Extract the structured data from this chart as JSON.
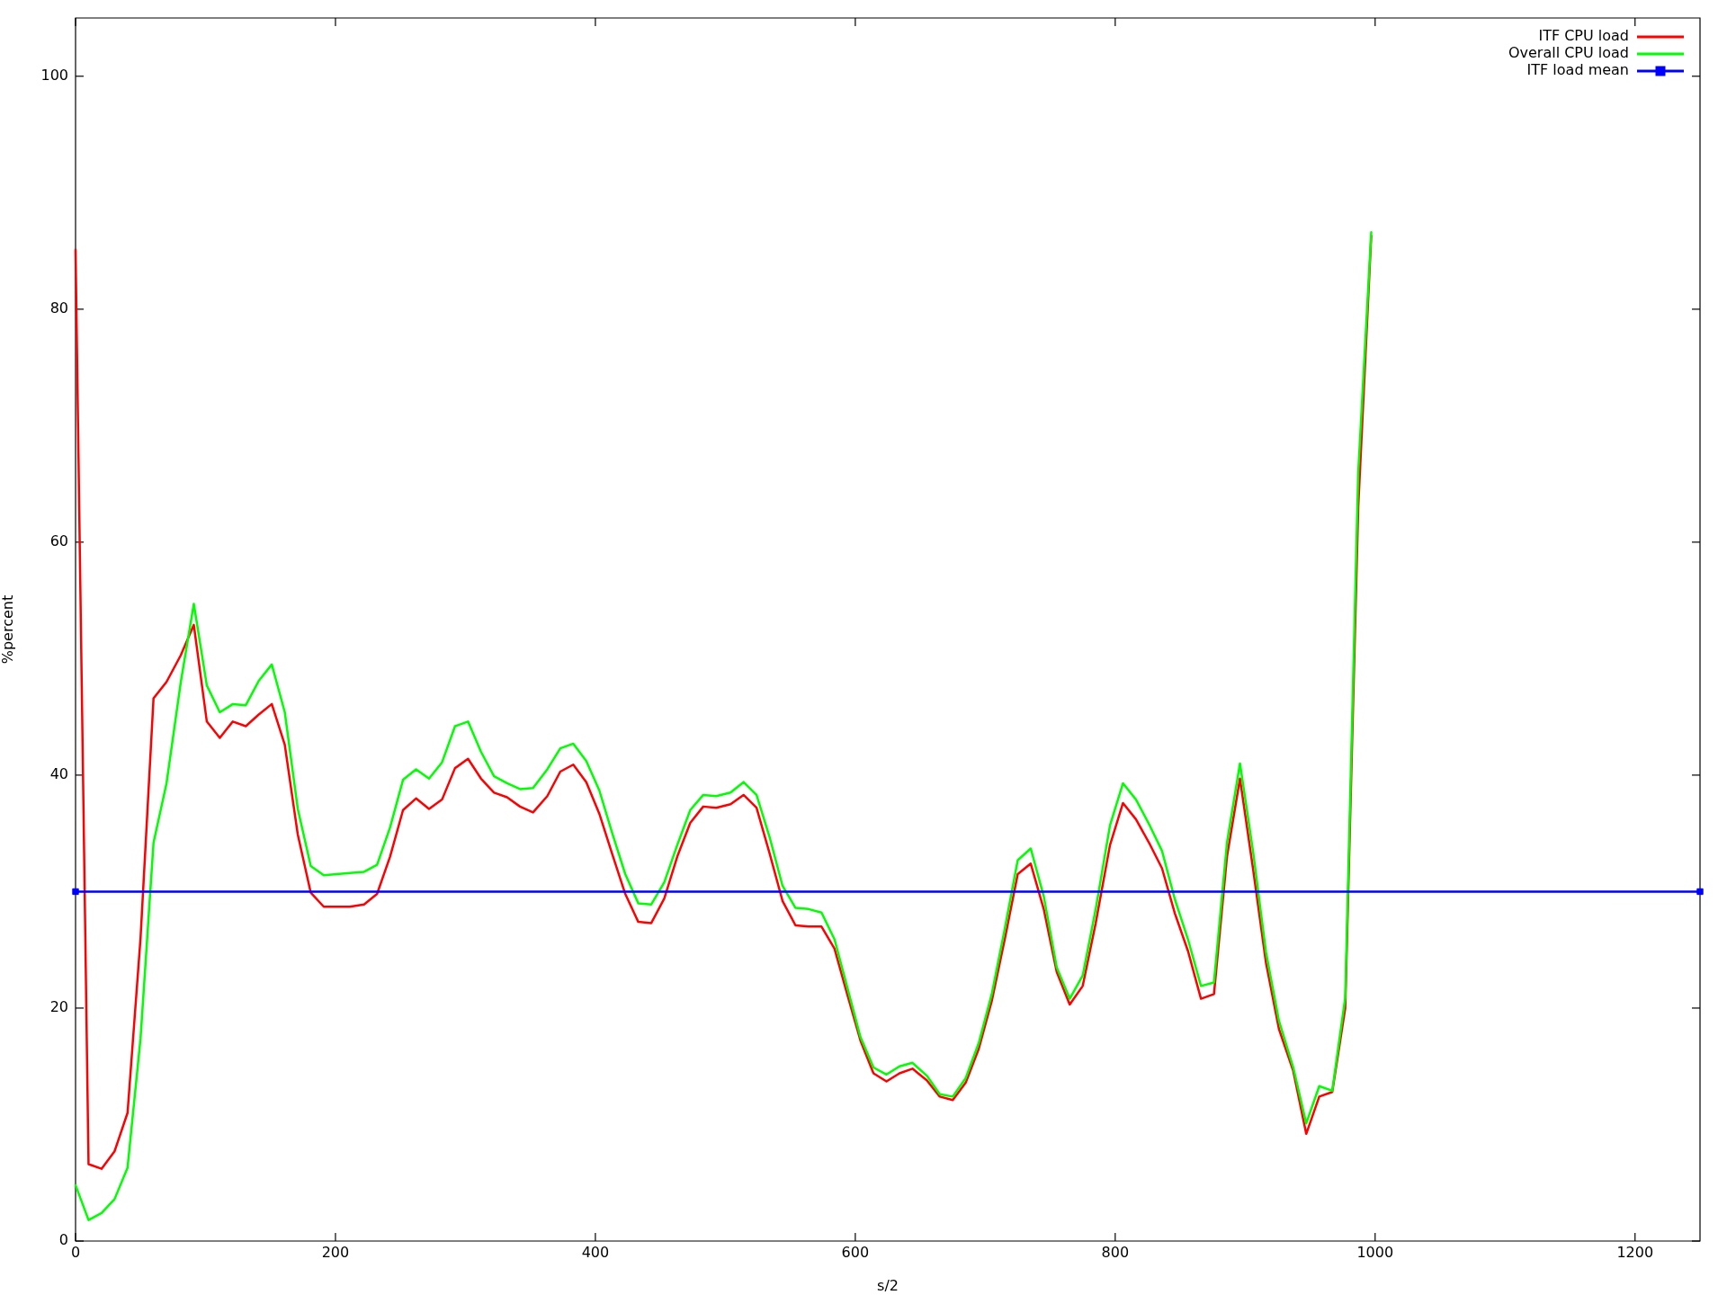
{
  "chart_data": {
    "type": "line",
    "xlabel": "s/2",
    "ylabel": "%percent",
    "legend": "top right",
    "xlim": [
      0,
      1250
    ],
    "xticks": [
      0,
      200,
      400,
      600,
      800,
      1000,
      1200
    ],
    "ylim": [
      0,
      105
    ],
    "yticks": [
      0,
      20,
      40,
      60,
      80,
      100
    ],
    "x": [
      0,
      10,
      20,
      30,
      40,
      50,
      60,
      70,
      81,
      91,
      101,
      111,
      121,
      131,
      141,
      151,
      161,
      171,
      181,
      191,
      201,
      211,
      222,
      232,
      242,
      252,
      262,
      272,
      282,
      292,
      302,
      312,
      322,
      332,
      342,
      352,
      363,
      373,
      383,
      393,
      403,
      413,
      423,
      433,
      443,
      453,
      463,
      473,
      483,
      493,
      504,
      514,
      524,
      534,
      544,
      554,
      564,
      574,
      584,
      594,
      604,
      614,
      624,
      634,
      644,
      655,
      665,
      675,
      685,
      695,
      705,
      715,
      725,
      735,
      745,
      755,
      765,
      775,
      785,
      796,
      806,
      816,
      826,
      836,
      846,
      856,
      866,
      876,
      886,
      896,
      906,
      916,
      926,
      937,
      947,
      957,
      967,
      977,
      987,
      997
    ],
    "series": [
      {
        "name": "ITF CPU load",
        "color": "#ff0000",
        "values": [
          85.1,
          6.6,
          6.2,
          7.7,
          11.0,
          26.0,
          46.6,
          48.0,
          50.3,
          52.9,
          44.6,
          43.2,
          44.6,
          44.2,
          45.2,
          46.1,
          42.6,
          34.9,
          29.9,
          28.7,
          28.7,
          28.7,
          28.9,
          29.8,
          33.0,
          37.0,
          38.0,
          37.1,
          37.9,
          40.6,
          41.4,
          39.7,
          38.5,
          38.1,
          37.3,
          36.8,
          38.2,
          40.3,
          40.9,
          39.4,
          36.7,
          33.2,
          29.8,
          27.4,
          27.3,
          29.4,
          33.0,
          35.9,
          37.3,
          37.2,
          37.5,
          38.3,
          37.2,
          33.3,
          29.2,
          27.1,
          27.0,
          27.0,
          25.1,
          21.1,
          17.2,
          14.4,
          13.7,
          14.4,
          14.8,
          13.8,
          12.4,
          12.1,
          13.6,
          16.5,
          20.6,
          25.9,
          31.5,
          32.4,
          28.5,
          23.1,
          20.3,
          21.9,
          27.3,
          34.0,
          37.6,
          36.2,
          34.2,
          32.0,
          28.1,
          24.9,
          20.8,
          21.2,
          33.0,
          39.7,
          32.0,
          23.9,
          18.2,
          14.6,
          9.2,
          12.4,
          12.8,
          20.0,
          63.0,
          86.3
        ]
      },
      {
        "name": "Overall CPU load",
        "color": "#00ff00",
        "values": [
          4.8,
          1.8,
          2.4,
          3.6,
          6.3,
          17.4,
          34.2,
          39.3,
          48.0,
          54.7,
          47.7,
          45.4,
          46.1,
          46.0,
          48.1,
          49.5,
          45.4,
          37.1,
          32.2,
          31.4,
          31.5,
          31.6,
          31.7,
          32.3,
          35.5,
          39.6,
          40.5,
          39.7,
          41.1,
          44.2,
          44.6,
          42.0,
          39.9,
          39.3,
          38.8,
          38.9,
          40.5,
          42.3,
          42.7,
          41.2,
          38.7,
          35.0,
          31.5,
          29.0,
          28.9,
          30.8,
          34.0,
          37.0,
          38.3,
          38.2,
          38.5,
          39.4,
          38.3,
          34.7,
          30.5,
          28.6,
          28.5,
          28.2,
          25.9,
          21.7,
          17.5,
          14.9,
          14.3,
          15.0,
          15.3,
          14.2,
          12.6,
          12.4,
          14.0,
          17.0,
          21.2,
          26.8,
          32.7,
          33.7,
          29.6,
          23.5,
          20.8,
          22.8,
          28.5,
          35.7,
          39.3,
          37.9,
          35.8,
          33.5,
          29.3,
          25.9,
          21.9,
          22.2,
          34.2,
          41.0,
          33.5,
          24.8,
          18.9,
          14.9,
          10.1,
          13.3,
          12.9,
          20.9,
          66.0,
          86.6
        ]
      },
      {
        "name": "ITF load mean",
        "color": "#0000ff",
        "x": [
          0,
          1250
        ],
        "values": [
          30.0,
          30.0
        ],
        "marker": "square"
      }
    ]
  }
}
